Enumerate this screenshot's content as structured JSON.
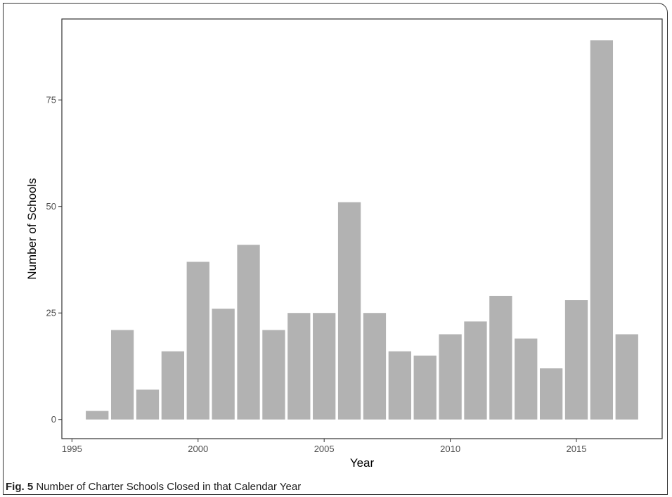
{
  "chart_data": {
    "type": "bar",
    "title": "",
    "xlabel": "Year",
    "ylabel": "Number of Schools",
    "x": [
      1996,
      1997,
      1998,
      1999,
      2000,
      2001,
      2002,
      2003,
      2004,
      2005,
      2006,
      2007,
      2008,
      2009,
      2010,
      2011,
      2012,
      2013,
      2014,
      2015,
      2016,
      2017
    ],
    "values": [
      2,
      21,
      7,
      16,
      37,
      26,
      41,
      21,
      25,
      25,
      51,
      25,
      16,
      15,
      20,
      23,
      29,
      19,
      12,
      28,
      89,
      20
    ],
    "xlim": [
      1994.6,
      2018.4
    ],
    "ylim": [
      -4.5,
      94
    ],
    "xticks": [
      1995,
      2000,
      2005,
      2010,
      2015
    ],
    "yticks": [
      0,
      25,
      50,
      75
    ],
    "grid": false,
    "bar_color": "#b2b2b2",
    "panel_border_color": "#333333"
  },
  "caption": {
    "label": "Fig. 5",
    "text": " Number of Charter Schools Closed in that Calendar Year"
  }
}
